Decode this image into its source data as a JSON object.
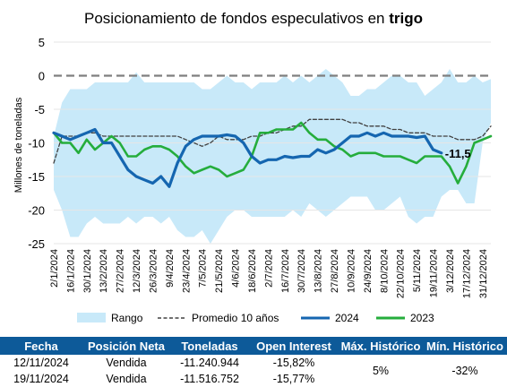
{
  "chart_data": {
    "type": "line",
    "title_prefix": "Posicionamiento de fondos especulativos en ",
    "title_bold": "trigo",
    "ylabel": "Millones de toneladas",
    "ylim": [
      -25,
      5
    ],
    "yticks": [
      5,
      0,
      -5,
      -10,
      -15,
      -20,
      -25
    ],
    "x_labels": [
      "2/1/2024",
      "16/1/2024",
      "30/1/2024",
      "13/2/2024",
      "27/2/2024",
      "12/3/2024",
      "26/3/2024",
      "9/4/2024",
      "23/4/2024",
      "7/5/2024",
      "21/5/2024",
      "4/6/2024",
      "18/6/2024",
      "2/7/2024",
      "16/7/2024",
      "30/7/2024",
      "13/8/2024",
      "27/8/2024",
      "10/9/2024",
      "24/9/2024",
      "8/10/2024",
      "22/10/2024",
      "5/11/2024",
      "19/11/2024",
      "3/12/2024",
      "17/12/2024",
      "31/12/2024"
    ],
    "x_steps": 53,
    "legend": [
      {
        "key": "range",
        "label": "Rango",
        "color": "#c8e9f9"
      },
      {
        "key": "avg",
        "label": "Promedio 10 años",
        "color": "#404040"
      },
      {
        "key": "s2024",
        "label": "2024",
        "color": "#1566b0"
      },
      {
        "key": "s2023",
        "label": "2023",
        "color": "#25ad3c"
      }
    ],
    "range_upper": [
      -9,
      -4,
      -2,
      -2,
      -2,
      -1,
      -1,
      -1,
      -1,
      -1,
      0.5,
      -1,
      -1,
      -1,
      -1,
      -1,
      -1,
      -1,
      -2,
      -2,
      -1,
      0,
      -1,
      -1,
      -2,
      -1,
      -1,
      -1,
      0,
      -1,
      0,
      -1,
      0,
      1,
      0,
      -1,
      -3,
      -3,
      -2,
      -2,
      -1,
      0,
      0,
      -1,
      -1,
      -3,
      -2,
      -1,
      1,
      -1,
      -1,
      0,
      -1,
      -0.5
    ],
    "range_lower": [
      -17,
      -20,
      -24,
      -24,
      -22,
      -21,
      -22,
      -22,
      -22,
      -21,
      -22,
      -21,
      -21,
      -22,
      -21,
      -23,
      -24,
      -24,
      -23,
      -25,
      -23,
      -21,
      -20,
      -20,
      -21,
      -21,
      -21,
      -21,
      -21,
      -20,
      -21,
      -19,
      -20,
      -21,
      -20,
      -19,
      -18,
      -18,
      -18,
      -20,
      -20,
      -19,
      -18,
      -21,
      -22,
      -21,
      -21,
      -18,
      -17,
      -17,
      -19,
      -19,
      -10,
      -7
    ],
    "average": [
      -13,
      -9,
      -9,
      -9,
      -8.5,
      -8.5,
      -9,
      -9,
      -9,
      -9,
      -9,
      -9,
      -9,
      -9,
      -9,
      -9,
      -9.5,
      -10,
      -10.5,
      -10,
      -9,
      -9.5,
      -9.5,
      -9.5,
      -9,
      -9,
      -8.5,
      -8.5,
      -8,
      -7.5,
      -7.5,
      -6.5,
      -6.5,
      -6.5,
      -6.5,
      -6.5,
      -7,
      -7,
      -7.5,
      -7.5,
      -7.5,
      -8,
      -8,
      -8.5,
      -8.5,
      -8.5,
      -9,
      -9,
      -9,
      -9.5,
      -9.5,
      -9.5,
      -9,
      -7.5
    ],
    "series_2024": [
      -8.5,
      -9,
      -9.5,
      -9,
      -8.5,
      -8,
      -10,
      -10,
      -12,
      -14,
      -15,
      -15.5,
      -16,
      -15,
      -16.5,
      -13,
      -10.5,
      -9.5,
      -9,
      -9,
      -9,
      -8.8,
      -9,
      -10,
      -12,
      -13,
      -12.5,
      -12.5,
      -12,
      -12.2,
      -12,
      -12,
      -11,
      -11.5,
      -11,
      -10,
      -9,
      -9,
      -8.5,
      -9,
      -8.5,
      -9,
      -9,
      -9,
      -9.2,
      -9,
      -11,
      -11.5
    ],
    "series_2023": [
      -8.5,
      -10,
      -10,
      -11.5,
      -9.5,
      -11,
      -10,
      -9,
      -10,
      -12,
      -12,
      -11,
      -10.5,
      -10.5,
      -11,
      -12,
      -13.5,
      -14.5,
      -14,
      -13.5,
      -14,
      -15,
      -14.5,
      -14,
      -12,
      -8.5,
      -8.5,
      -8,
      -8,
      -8,
      -7,
      -8.5,
      -9.5,
      -9.5,
      -10.5,
      -11,
      -12,
      -11.5,
      -11.5,
      -11.5,
      -12,
      -12,
      -12,
      -12.5,
      -13,
      -12,
      -12,
      -12,
      -13.5,
      -16,
      -13.5,
      -10,
      -9.5,
      -9
    ],
    "end_label": "-11,5"
  },
  "table": {
    "headers": [
      "Fecha",
      "Posición Neta",
      "Toneladas",
      "Open Interest",
      "Máx. Histórico",
      "Mín. Histórico"
    ],
    "rows": [
      {
        "fecha": "12/11/2024",
        "posicion": "Vendida",
        "toneladas": "-11.240.944",
        "open_interest": "-15,82%"
      },
      {
        "fecha": "19/11/2024",
        "posicion": "Vendida",
        "toneladas": "-11.516.752",
        "open_interest": "-15,77%"
      }
    ],
    "max_historico": "5%",
    "min_historico": "-32%"
  }
}
